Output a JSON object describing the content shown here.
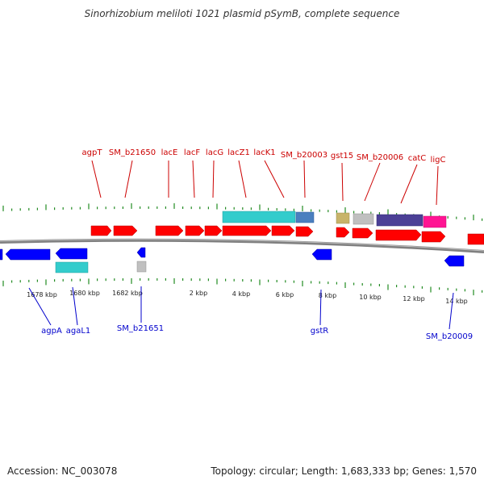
{
  "title": "Sinorhizobium meliloti 1021 plasmid pSymB, complete sequence",
  "footer": {
    "accession": "Accession: NC_003078",
    "summary": "Topology: circular; Length: 1,683,333 bp; Genes: 1,570"
  },
  "colors": {
    "forward_gene": "#ff0000",
    "reverse_gene": "#0000ff",
    "label_forward": "#cc0000",
    "label_reverse": "#0000cc",
    "tick": "#228b22",
    "backbone": "#808080",
    "cyan": "#33cccc",
    "steelblue": "#4a7fbf",
    "khaki": "#c8b46a",
    "gray": "#c0c0c0",
    "purple": "#4b4096",
    "magenta": "#ff1493"
  },
  "axis_labels": [
    "1678 kbp",
    "1680 kbp",
    "1682 kbp",
    "2 kbp",
    "4 kbp",
    "6 kbp",
    "8 kbp",
    "10 kbp",
    "12 kbp",
    "14 kbp"
  ],
  "forward_labels": [
    "agpT",
    "SM_b21650",
    "lacE",
    "lacF",
    "lacG",
    "lacZ1",
    "lacK1",
    "SM_b20003",
    "gst15",
    "SM_b20006",
    "catC",
    "ligC"
  ],
  "reverse_labels": [
    "agpA",
    "agaL1",
    "SM_b21651",
    "gstR",
    "SM_b20009"
  ]
}
